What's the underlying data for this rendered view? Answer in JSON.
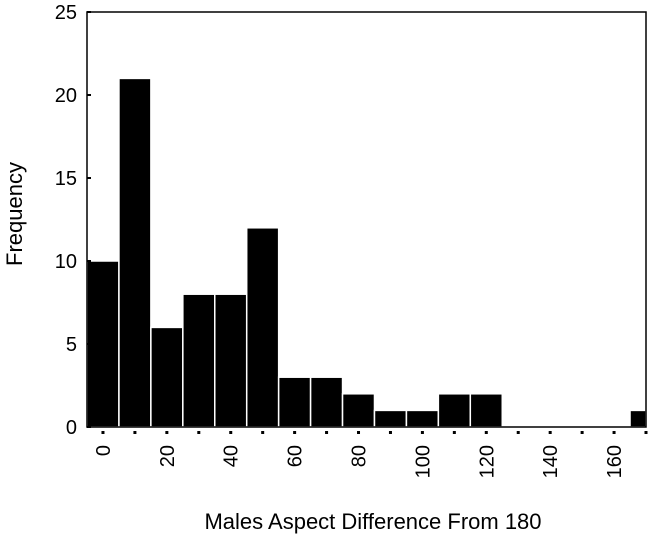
{
  "chart_data": {
    "type": "bar",
    "title": "",
    "xlabel": "Males Aspect Difference From 180",
    "ylabel": "Frequency",
    "bin_width": 10,
    "x_start": 0,
    "xlim": [
      0,
      175
    ],
    "ylim": [
      0,
      25
    ],
    "x_ticks": [
      0,
      20,
      40,
      60,
      80,
      100,
      120,
      140,
      160
    ],
    "y_ticks": [
      0,
      5,
      10,
      15,
      20,
      25
    ],
    "values": [
      10,
      21,
      6,
      8,
      8,
      12,
      3,
      3,
      2,
      1,
      1,
      2,
      2,
      0,
      0,
      0,
      0,
      1
    ],
    "grid": false,
    "colors": {
      "bar": "#000000",
      "bar_edge": "#ffffff",
      "axis": "#000000"
    }
  }
}
